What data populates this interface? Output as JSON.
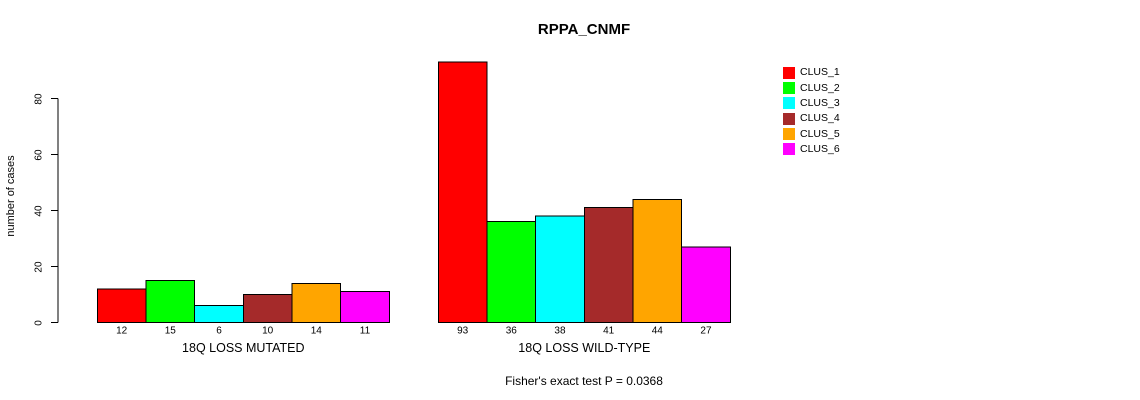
{
  "chart_data": {
    "type": "bar",
    "title": "RPPA_CNMF",
    "ylabel": "number of cases",
    "xlabel": "",
    "ylim": [
      0,
      93
    ],
    "yticks": [
      0,
      20,
      40,
      60,
      80
    ],
    "grid": false,
    "legend_position": "right",
    "categories": [
      "18Q LOSS MUTATED",
      "18Q LOSS WILD-TYPE"
    ],
    "series": [
      {
        "name": "CLUS_1",
        "color": "#FF0000",
        "values": [
          12,
          93
        ]
      },
      {
        "name": "CLUS_2",
        "color": "#00FF00",
        "values": [
          15,
          36
        ]
      },
      {
        "name": "CLUS_3",
        "color": "#00FFFF",
        "values": [
          6,
          38
        ]
      },
      {
        "name": "CLUS_4",
        "color": "#A52A2A",
        "values": [
          10,
          41
        ]
      },
      {
        "name": "CLUS_5",
        "color": "#FFA500",
        "values": [
          14,
          44
        ]
      },
      {
        "name": "CLUS_6",
        "color": "#FF00FF",
        "values": [
          11,
          27
        ]
      }
    ],
    "annotation": "Fisher's exact test P = 0.0368",
    "axis_color": "#000000",
    "bar_border_color": "#000000"
  }
}
